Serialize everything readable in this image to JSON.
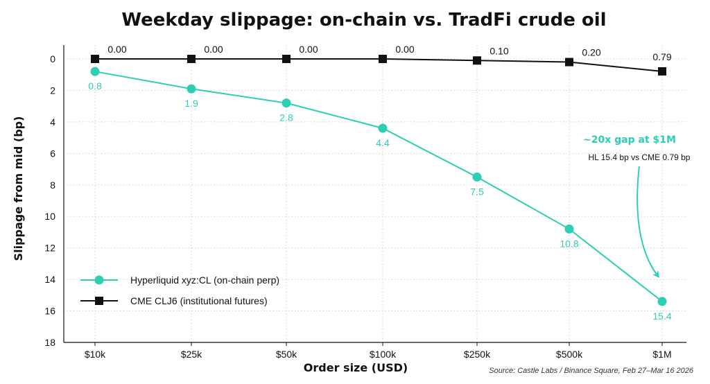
{
  "colors": {
    "hyperliquid": "#2ccfb4",
    "cme": "#111111",
    "grid": "#cfcfcf",
    "axis": "#111111"
  },
  "chart_data": {
    "type": "line",
    "title": "Weekday slippage: on-chain vs. TradFi crude oil",
    "xlabel": "Order size (USD)",
    "ylabel": "Slippage from mid (bp)",
    "categories": [
      "$10k",
      "$25k",
      "$50k",
      "$100k",
      "$250k",
      "$500k",
      "$1M"
    ],
    "y_inverted": true,
    "ylim": [
      0,
      18
    ],
    "yticks": [
      0,
      2,
      4,
      6,
      8,
      10,
      12,
      14,
      16,
      18
    ],
    "grid": true,
    "grid_style": "dotted",
    "legend_position": "lower-left",
    "series": [
      {
        "name": "Hyperliquid xyz:CL (on-chain perp)",
        "key": "hyperliquid",
        "marker": "circle",
        "values": [
          0.8,
          1.9,
          2.8,
          4.4,
          7.5,
          10.8,
          15.4
        ],
        "labels": [
          "0.8",
          "1.9",
          "2.8",
          "4.4",
          "7.5",
          "10.8",
          "15.4"
        ]
      },
      {
        "name": "CME CLJ6 (institutional futures)",
        "key": "cme",
        "marker": "square",
        "values": [
          0.0,
          0.0,
          0.0,
          0.0,
          0.1,
          0.2,
          0.79
        ],
        "labels": [
          "0.00",
          "0.00",
          "0.00",
          "0.00",
          "0.10",
          "0.20",
          "0.79"
        ]
      }
    ],
    "annotation": {
      "headline": "~20x gap at $1M",
      "detail": "HL 15.4 bp vs CME 0.79 bp",
      "target_category": "$1M",
      "target_series": "hyperliquid"
    },
    "source": "Source: Castle Labs / Binance Square, Feb 27–Mar 16 2026"
  }
}
